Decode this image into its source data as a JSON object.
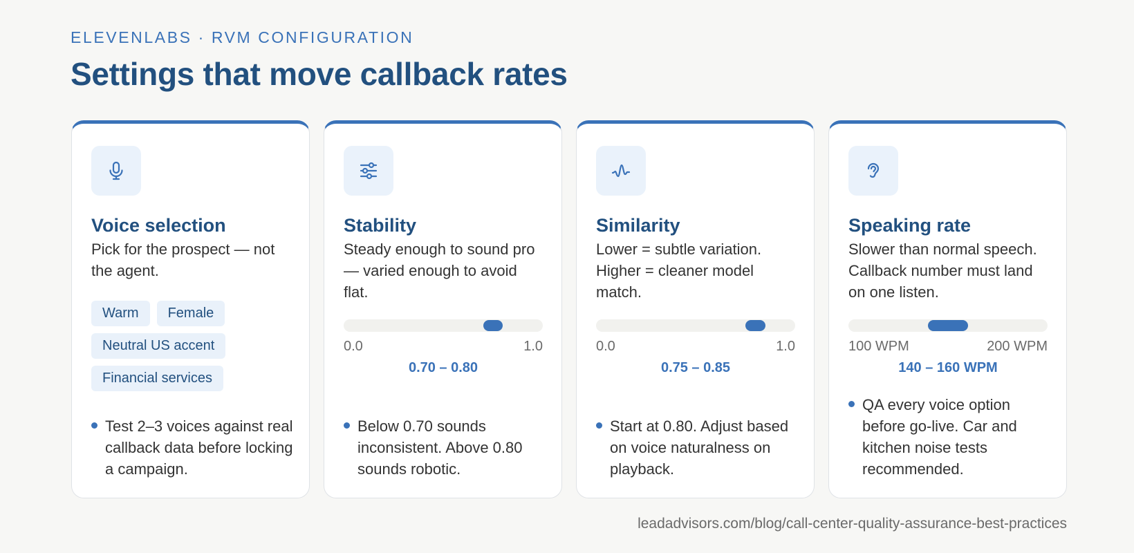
{
  "header": {
    "eyebrow": "ELEVENLABS · RVM CONFIGURATION",
    "title": "Settings that move callback rates"
  },
  "colors": {
    "accent": "#3a72b8",
    "heading": "#22507f",
    "icon_bg": "#eaf2fb",
    "track": "#f1f1ee"
  },
  "cards": [
    {
      "icon": "microphone-icon",
      "title": "Voice selection",
      "desc": "Pick for the prospect — not the agent.",
      "tags": [
        "Warm",
        "Female",
        "Neutral US accent",
        "Financial services"
      ],
      "bullet": "Test 2–3 voices against real callback data before locking a campaign."
    },
    {
      "icon": "sliders-icon",
      "title": "Stability",
      "desc": "Steady enough to sound pro — varied enough to avoid flat.",
      "slider": {
        "min": 0.0,
        "max": 1.0,
        "low": 0.7,
        "high": 0.8,
        "min_label": "0.0",
        "max_label": "1.0",
        "range_label": "0.70 – 0.80"
      },
      "bullet": "Below 0.70 sounds inconsistent. Above 0.80 sounds robotic."
    },
    {
      "icon": "waveform-icon",
      "title": "Similarity",
      "desc": "Lower = subtle variation. Higher = cleaner model match.",
      "slider": {
        "min": 0.0,
        "max": 1.0,
        "low": 0.75,
        "high": 0.85,
        "min_label": "0.0",
        "max_label": "1.0",
        "range_label": "0.75 – 0.85"
      },
      "bullet": "Start at 0.80. Adjust based on voice naturalness on playback."
    },
    {
      "icon": "ear-icon",
      "title": "Speaking rate",
      "desc": "Slower than normal speech. Callback number must land on one listen.",
      "slider": {
        "min": 100,
        "max": 200,
        "low": 140,
        "high": 160,
        "min_label": "100 WPM",
        "max_label": "200 WPM",
        "range_label": "140 – 160 WPM"
      },
      "bullet": "QA every voice option before go-live. Car and kitchen noise tests recommended."
    }
  ],
  "footer": {
    "source": "leadadvisors.com/blog/call-center-quality-assurance-best-practices"
  }
}
